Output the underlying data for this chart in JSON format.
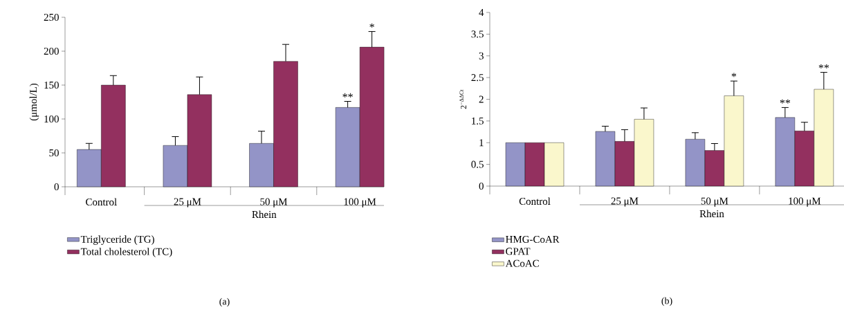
{
  "chart_data": [
    {
      "type": "bar",
      "ylabel": "(μmol/L)",
      "categories": [
        "Control",
        "25 μM",
        "50 μM",
        "100 μM"
      ],
      "ylim": [
        0,
        250
      ],
      "yticks": [
        0,
        50,
        100,
        150,
        200,
        250
      ],
      "legend": "bottom left",
      "series": [
        {
          "name": "Triglyceride (TG)",
          "color": "#9394c7",
          "values": [
            55,
            61,
            64,
            117
          ],
          "errors": [
            [
              55,
              64
            ],
            [
              61,
              74
            ],
            [
              64,
              82
            ],
            [
              117,
              126
            ]
          ]
        },
        {
          "name": "Total cholesterol (TC)",
          "color": "#93305f",
          "values": [
            150,
            136,
            185,
            206
          ],
          "errors": [
            [
              150,
              164
            ],
            [
              136,
              162
            ],
            [
              185,
              210
            ],
            [
              206,
              229
            ]
          ]
        }
      ],
      "annotations": [
        "**",
        "*",
        "Rhein",
        "(a)"
      ]
    },
    {
      "type": "bar",
      "ylabel": "2$^{−ΔΔCt}$",
      "categories": [
        "Control",
        "25 μM",
        "50 μM",
        "100 μM"
      ],
      "ylim": [
        0,
        4
      ],
      "yticks": [
        0,
        0.5,
        1,
        1.5,
        2,
        2.5,
        3,
        3.5,
        4
      ],
      "legend": "bottom left",
      "series": [
        {
          "name": "HMG-CoAR",
          "color": "#9394c7",
          "values": [
            1,
            1.26,
            1.08,
            1.58
          ],
          "errors": [
            null,
            [
              1.26,
              1.38
            ],
            [
              1.08,
              1.23
            ],
            [
              1.58,
              1.81
            ]
          ]
        },
        {
          "name": "GPAT",
          "color": "#93305f",
          "values": [
            1,
            1.03,
            0.82,
            1.27
          ],
          "errors": [
            null,
            [
              1.03,
              1.3
            ],
            [
              0.82,
              0.98
            ],
            [
              1.27,
              1.47
            ]
          ]
        },
        {
          "name": "ACoAC",
          "color": "#faf7cc",
          "values": [
            1,
            1.54,
            2.08,
            2.23
          ],
          "errors": [
            null,
            [
              1.54,
              1.8
            ],
            [
              2.08,
              2.42
            ],
            [
              2.23,
              2.62
            ]
          ]
        }
      ],
      "annotations": [
        "*",
        "**",
        "**",
        "Rhein",
        "(b)"
      ]
    }
  ]
}
